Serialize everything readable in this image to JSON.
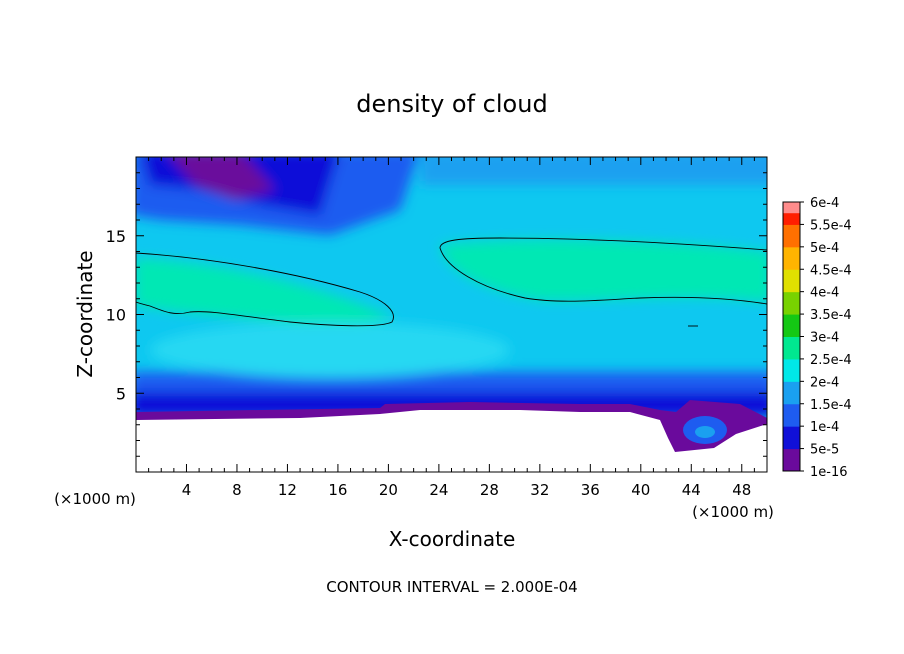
{
  "chart_data": {
    "type": "heatmap",
    "title": "density of cloud",
    "xlabel": "X-coordinate",
    "ylabel": "Z-coordinate",
    "x_unit_left": "(×1000 m)",
    "x_unit_right": "(×1000 m)",
    "xlim": [
      0,
      50
    ],
    "ylim": [
      0,
      20
    ],
    "x_ticks": [
      "4",
      "8",
      "12",
      "16",
      "20",
      "24",
      "28",
      "32",
      "36",
      "40",
      "44",
      "48"
    ],
    "y_ticks": [
      "5",
      "10",
      "15"
    ],
    "footer": "CONTOUR INTERVAL = 2.000E-04",
    "colorbar": {
      "labels": [
        "1e-16",
        "5e-5",
        "1e-4",
        "1.5e-4",
        "2e-4",
        "2.5e-4",
        "3e-4",
        "3.5e-4",
        "4e-4",
        "4.5e-4",
        "5e-4",
        "5.5e-4",
        "6e-4"
      ],
      "colors": [
        "#6a0a9c",
        "#1010d8",
        "#1e5cf0",
        "#1aa0f0",
        "#00e8e8",
        "#00e890",
        "#14c814",
        "#78d200",
        "#e0e000",
        "#ffb400",
        "#ff7000",
        "#ff1e00",
        "#ff8c8c"
      ]
    },
    "contour_level": 0.0002
  }
}
